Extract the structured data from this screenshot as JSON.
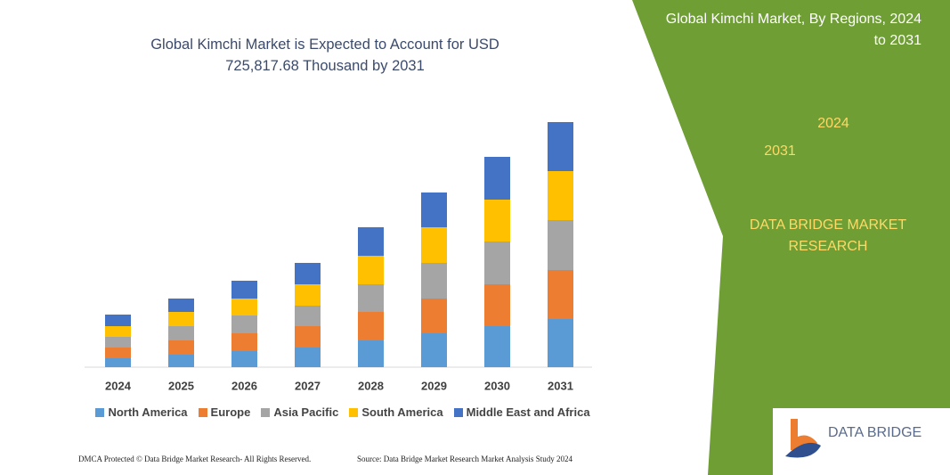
{
  "chart_data": {
    "type": "bar",
    "stacked": true,
    "title": "Global Kimchi Market is Expected to Account for USD 725,817.68 Thousand  by 2031",
    "categories": [
      "2024",
      "2025",
      "2026",
      "2027",
      "2028",
      "2029",
      "2030",
      "2031"
    ],
    "series": [
      {
        "name": "North America",
        "color": "#5b9bd5",
        "values": [
          10,
          14,
          18,
          22,
          30,
          38,
          46,
          54
        ]
      },
      {
        "name": "Europe",
        "color": "#ed7d31",
        "values": [
          12,
          16,
          20,
          24,
          32,
          39,
          47,
          55
        ]
      },
      {
        "name": "Asia Pacific",
        "color": "#a5a5a5",
        "values": [
          12,
          16,
          20,
          23,
          31,
          40,
          48,
          56
        ]
      },
      {
        "name": "South America",
        "color": "#ffc000",
        "values": [
          12,
          16,
          19,
          24,
          32,
          40,
          47,
          55
        ]
      },
      {
        "name": "Middle East and Africa",
        "color": "#4472c4",
        "values": [
          13,
          15,
          20,
          24,
          32,
          39,
          48,
          55
        ]
      }
    ]
  },
  "panel": {
    "title": "Global Kimchi Market, By Regions, 2024 to 2031",
    "hexagons": [
      "2024",
      "2031"
    ],
    "brand": "DATA BRIDGE MARKET RESEARCH"
  },
  "logo": "DATA BRIDGE",
  "footer": {
    "left": "DMCA Protected © Data Bridge Market Research-  All Rights Reserved.",
    "right": "Source: Data Bridge Market Research  Market Analysis Study 2024"
  }
}
